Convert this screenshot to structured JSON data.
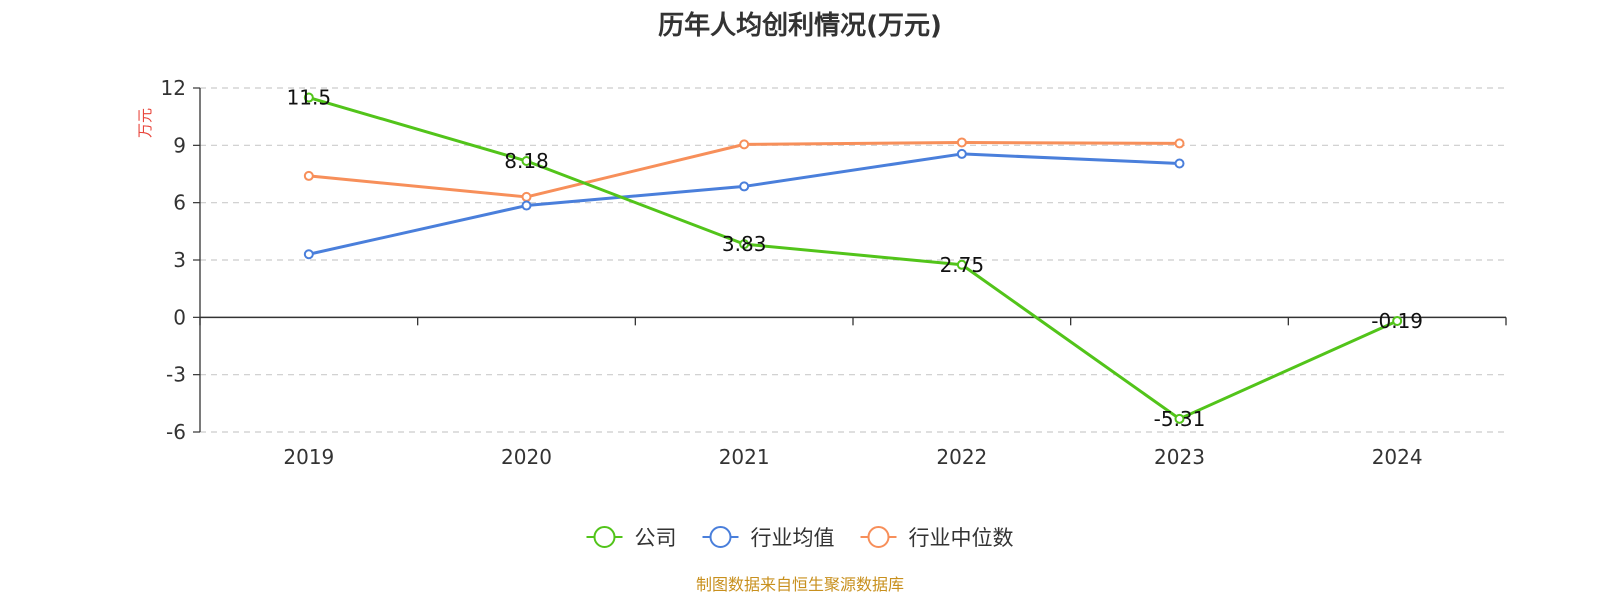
{
  "chart_data": {
    "type": "line",
    "title": "历年人均创利情况(万元)",
    "ylabel": "万元",
    "x": [
      "2019",
      "2020",
      "2021",
      "2022",
      "2023",
      "2024"
    ],
    "ylim": [
      -6,
      12
    ],
    "yticks": [
      12,
      9,
      6,
      3,
      0,
      -3,
      -6
    ],
    "grid": true,
    "legend_position": "bottom-center",
    "series": [
      {
        "name": "公司",
        "color": "#52c41a",
        "values": [
          11.5,
          8.18,
          3.83,
          2.75,
          -5.31,
          -0.19
        ],
        "labels": [
          "11.5",
          "8.18",
          "3.83",
          "2.75",
          "-5.31",
          "-0.19"
        ]
      },
      {
        "name": "行业均值",
        "color": "#4a7fdb",
        "values": [
          3.3,
          5.85,
          6.85,
          8.55,
          8.05,
          null
        ]
      },
      {
        "name": "行业中位数",
        "color": "#f78f5a",
        "values": [
          7.4,
          6.3,
          9.05,
          9.15,
          9.1,
          null
        ]
      }
    ],
    "source": "制图数据来自恒生聚源数据库",
    "ylabel_color": "#e8463c",
    "source_color": "#c8901e"
  }
}
